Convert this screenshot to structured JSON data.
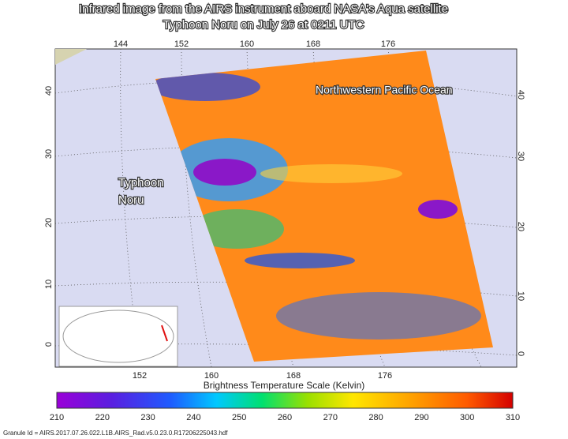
{
  "title": [
    "Infrared image from the AIRS instrument aboard NASA's Aqua satellite",
    "Typhoon Noru on July 26 at 0211 UTC"
  ],
  "map_labels": {
    "ocean": "Northwestern Pacific Ocean",
    "storm": [
      "Typhoon",
      "Noru"
    ]
  },
  "longitude_ticks_top": [
    144,
    152,
    160,
    168,
    176
  ],
  "longitude_ticks_bottom": [
    152,
    160,
    168,
    176
  ],
  "latitude_ticks_left": [
    40,
    30,
    20,
    10,
    0
  ],
  "latitude_ticks_right": [
    40,
    30,
    20,
    10,
    0
  ],
  "colorbar": {
    "title": "Brightness Temperature Scale (Kelvin)",
    "labels": [
      210,
      220,
      230,
      240,
      250,
      260,
      270,
      280,
      290,
      300,
      310
    ]
  },
  "granule": "Granule Id = AIRS.2017.07.26.022.L1B.AIRS_Rad.v5.0.23.0.R17206225043.hdf"
}
